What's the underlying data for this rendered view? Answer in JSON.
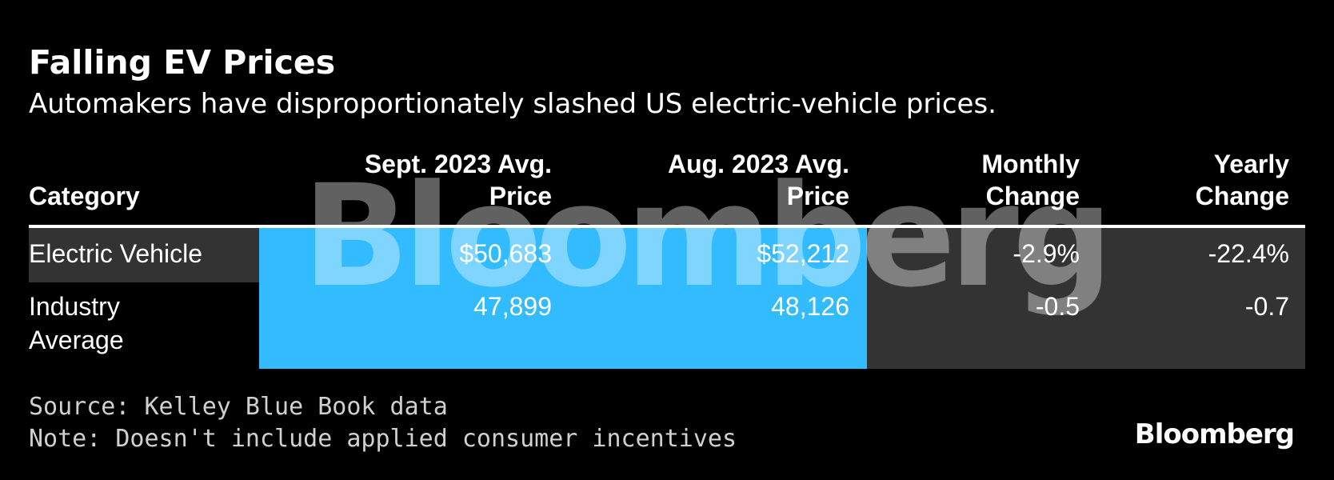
{
  "title": "Falling EV Prices",
  "subtitle": "Automakers have disproportionately slashed US electric-vehicle prices.",
  "columns": {
    "category": "Category",
    "sept": [
      "Sept. 2023 Avg.",
      "Price"
    ],
    "aug": [
      "Aug. 2023 Avg.",
      "Price"
    ],
    "monthly": [
      "Monthly",
      "Change"
    ],
    "yearly": [
      "Yearly",
      "Change"
    ]
  },
  "rows": [
    {
      "category": [
        "Electric Vehicle"
      ],
      "sept": "$50,683",
      "aug": "$52,212",
      "monthly": "-2.9%",
      "yearly": "-22.4%"
    },
    {
      "category": [
        "Industry",
        "Average"
      ],
      "sept": "47,899",
      "aug": "48,126",
      "monthly": "-0.5",
      "yearly": "-0.7"
    }
  ],
  "source": "Source: Kelley Blue Book data",
  "note": "Note: Doesn't include applied consumer incentives",
  "watermark": "Bloomberg",
  "brand": "Bloomberg",
  "colors": {
    "background": "#000000",
    "highlight_blue": "#33bbff",
    "row_gray": "#333333",
    "text": "#ffffff"
  },
  "chart_data": {
    "type": "table",
    "title": "Falling EV Prices",
    "subtitle": "Automakers have disproportionately slashed US electric-vehicle prices.",
    "columns": [
      "Category",
      "Sept. 2023 Avg. Price",
      "Aug. 2023 Avg. Price",
      "Monthly Change",
      "Yearly Change"
    ],
    "rows": [
      [
        "Electric Vehicle",
        50683,
        52212,
        -2.9,
        -22.4
      ],
      [
        "Industry Average",
        47899,
        48126,
        -0.5,
        -0.7
      ]
    ]
  }
}
